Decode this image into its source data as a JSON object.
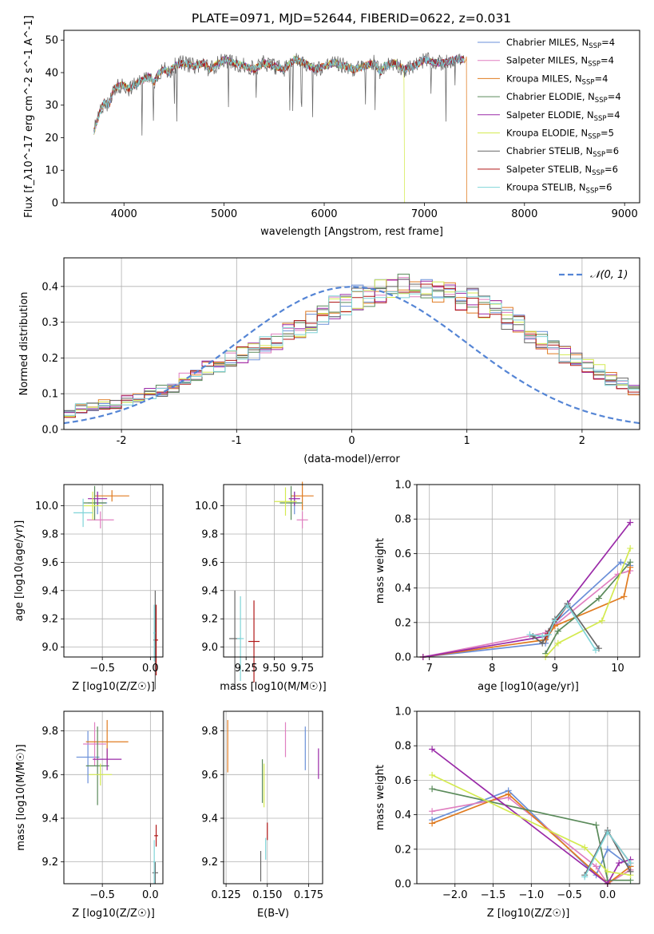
{
  "figure_title": "PLATE=0971, MJD=52644, FIBERID=0622, z=0.031",
  "colors": {
    "chabrier_miles": "#6a8fd8",
    "salpeter_miles": "#e07fc0",
    "kroupa_miles": "#e07b20",
    "chabrier_elodie": "#5a8a5a",
    "salpeter_elodie": "#9a2aa8",
    "kroupa_elodie": "#d4ea50",
    "chabrier_stelib": "#666666",
    "salpeter_stelib": "#b01818",
    "kroupa_stelib": "#7fd4d8",
    "normal_curve": "#5585d5"
  },
  "chart_data": [
    {
      "id": "spectrum",
      "type": "line",
      "title": "PLATE=0971, MJD=52644, FIBERID=0622, z=0.031",
      "xlabel": "wavelength [Angstrom, rest frame]",
      "ylabel": "Flux [f_λ10^-17 erg cm^-2 s^-1 A^-1]",
      "xlim": [
        3400,
        9150
      ],
      "ylim": [
        0,
        53
      ],
      "xticks": [
        4000,
        5000,
        6000,
        7000,
        8000,
        9000
      ],
      "yticks": [
        0,
        10,
        20,
        30,
        40,
        50
      ],
      "grid": false,
      "legend_position": "top-right",
      "spectrum_x": [
        3700,
        3750,
        3800,
        3850,
        3900,
        3950,
        4000,
        4050,
        4100,
        4150,
        4200,
        4250,
        4300,
        4350,
        4400,
        4450,
        4500,
        4600,
        4700,
        4800,
        4850,
        4900,
        5000,
        5100,
        5200,
        5300,
        5400,
        5500,
        5600,
        5700,
        5800,
        5900,
        6000,
        6100,
        6200,
        6300,
        6400,
        6500,
        6560,
        6600,
        6700,
        6800,
        6900,
        7000,
        7100,
        7200,
        7300,
        7400
      ],
      "spectrum_y": [
        22,
        27,
        31,
        30,
        35,
        36,
        36,
        35,
        36,
        37,
        38,
        39,
        37,
        40,
        41,
        40,
        42,
        43,
        42,
        43,
        41,
        42,
        44,
        43,
        42,
        41,
        43,
        42,
        41,
        44,
        43,
        41,
        42,
        43,
        42,
        41,
        42,
        43,
        40,
        42,
        43,
        41,
        42,
        44,
        43,
        43,
        44,
        44
      ],
      "series": [
        {
          "name": "Chabrier MILES, N_SSP=4",
          "label_main": "Chabrier MILES, N",
          "label_sub": "SSP",
          "label_tail": "=4",
          "color": "#6a8fd8"
        },
        {
          "name": "Salpeter MILES, N_SSP=4",
          "label_main": "Salpeter MILES, N",
          "label_sub": "SSP",
          "label_tail": "=4",
          "color": "#e07fc0"
        },
        {
          "name": "Kroupa MILES, N_SSP=4",
          "label_main": "Kroupa MILES, N",
          "label_sub": "SSP",
          "label_tail": "=4",
          "color": "#e07b20",
          "drop_at": 7420
        },
        {
          "name": "Chabrier ELODIE, N_SSP=4",
          "label_main": "Chabrier ELODIE, N",
          "label_sub": "SSP",
          "label_tail": "=4",
          "color": "#5a8a5a"
        },
        {
          "name": "Salpeter ELODIE, N_SSP=4",
          "label_main": "Salpeter ELODIE, N",
          "label_sub": "SSP",
          "label_tail": "=4",
          "color": "#9a2aa8"
        },
        {
          "name": "Kroupa ELODIE, N_SSP=5",
          "label_main": "Kroupa ELODIE, N",
          "label_sub": "SSP",
          "label_tail": "=5",
          "color": "#d4ea50",
          "drop_at": 6800
        },
        {
          "name": "Chabrier STELIB, N_SSP=6",
          "label_main": "Chabrier STELIB, N",
          "label_sub": "SSP",
          "label_tail": "=6",
          "color": "#666666"
        },
        {
          "name": "Salpeter STELIB, N_SSP=6",
          "label_main": "Salpeter STELIB, N",
          "label_sub": "SSP",
          "label_tail": "=6",
          "color": "#b01818"
        },
        {
          "name": "Kroupa STELIB, N_SSP=6",
          "label_main": "Kroupa STELIB, N",
          "label_sub": "SSP",
          "label_tail": "=6",
          "color": "#7fd4d8"
        }
      ]
    },
    {
      "id": "residuals",
      "type": "histogram",
      "xlabel": "(data-model)/error",
      "ylabel": "Normed distribution",
      "xlim": [
        -2.5,
        2.5
      ],
      "ylim": [
        0,
        0.48
      ],
      "xticks": [
        -2,
        -1,
        0,
        1,
        2
      ],
      "yticks": [
        0.0,
        0.1,
        0.2,
        0.3,
        0.4
      ],
      "grid": true,
      "legend_position": "top-right",
      "legend": "𝒩(0, 1)",
      "bin_width": 0.1,
      "bins_start": -2.5,
      "base_values": [
        0.04,
        0.06,
        0.06,
        0.07,
        0.07,
        0.08,
        0.09,
        0.1,
        0.11,
        0.12,
        0.14,
        0.15,
        0.17,
        0.18,
        0.2,
        0.21,
        0.22,
        0.24,
        0.25,
        0.27,
        0.28,
        0.3,
        0.32,
        0.34,
        0.35,
        0.37,
        0.38,
        0.39,
        0.4,
        0.4,
        0.4,
        0.4,
        0.39,
        0.38,
        0.37,
        0.36,
        0.34,
        0.33,
        0.31,
        0.29,
        0.27,
        0.25,
        0.23,
        0.21,
        0.2,
        0.18,
        0.16,
        0.14,
        0.13,
        0.11,
        0.1,
        0.09,
        0.08,
        0.07,
        0.06,
        0.06,
        0.05,
        0.04,
        0.04,
        0.03
      ],
      "normal_curve": {
        "mean": 0,
        "sigma": 1
      }
    },
    {
      "id": "age-vs-Z",
      "type": "errorbar",
      "xlabel": "Z [log10(Z/Z☉)]",
      "ylabel": "age  [log10(age/yr)]",
      "xlim": [
        -0.9,
        0.13
      ],
      "ylim": [
        8.93,
        10.15
      ],
      "xticks": [
        -0.5,
        0.0
      ],
      "xticklabels": [
        "−0.5",
        "0.0"
      ],
      "yticks": [
        9.0,
        9.2,
        9.4,
        9.6,
        9.8,
        10.0
      ],
      "grid": true,
      "points": [
        {
          "x": -0.55,
          "y": 10.02,
          "xerr": 0.1,
          "yerr": 0.08,
          "color": "#6a8fd8"
        },
        {
          "x": -0.52,
          "y": 9.9,
          "xerr": 0.14,
          "yerr": 0.06,
          "color": "#e07fc0"
        },
        {
          "x": -0.4,
          "y": 10.07,
          "xerr": 0.18,
          "yerr": 0.04,
          "color": "#e07b20"
        },
        {
          "x": -0.58,
          "y": 10.02,
          "xerr": 0.12,
          "yerr": 0.12,
          "color": "#5a8a5a"
        },
        {
          "x": -0.55,
          "y": 10.05,
          "xerr": 0.1,
          "yerr": 0.05,
          "color": "#9a2aa8"
        },
        {
          "x": -0.6,
          "y": 10.0,
          "xerr": 0.1,
          "yerr": 0.1,
          "color": "#d4ea50"
        },
        {
          "x": 0.05,
          "y": 9.05,
          "xerr": 0.02,
          "yerr": 0.35,
          "color": "#666666"
        },
        {
          "x": 0.06,
          "y": 9.05,
          "xerr": 0.02,
          "yerr": 0.25,
          "color": "#b01818"
        },
        {
          "x": -0.7,
          "y": 9.95,
          "xerr": 0.1,
          "yerr": 0.1,
          "color": "#7fd4d8"
        },
        {
          "x": 0.04,
          "y": 9.1,
          "xerr": 0.01,
          "yerr": 0.2,
          "color": "#7fd4d8"
        }
      ]
    },
    {
      "id": "age-vs-mass",
      "type": "errorbar",
      "xlabel": "mass [log10(M/M☉)]",
      "ylabel": "",
      "xlim": [
        9.05,
        9.93
      ],
      "ylim": [
        8.93,
        10.15
      ],
      "xticks": [
        9.25,
        9.5,
        9.75
      ],
      "xticklabels": [
        "9.25",
        "9.50",
        "9.75"
      ],
      "yticks": [
        9.0,
        9.2,
        9.4,
        9.6,
        9.8,
        10.0
      ],
      "grid": true,
      "points": [
        {
          "x": 9.68,
          "y": 10.02,
          "xerr": 0.05,
          "yerr": 0.08,
          "color": "#6a8fd8"
        },
        {
          "x": 9.75,
          "y": 9.9,
          "xerr": 0.05,
          "yerr": 0.06,
          "color": "#e07fc0"
        },
        {
          "x": 9.75,
          "y": 10.07,
          "xerr": 0.1,
          "yerr": 0.1,
          "color": "#e07b20"
        },
        {
          "x": 9.65,
          "y": 10.02,
          "xerr": 0.1,
          "yerr": 0.12,
          "color": "#5a8a5a"
        },
        {
          "x": 9.68,
          "y": 10.05,
          "xerr": 0.05,
          "yerr": 0.05,
          "color": "#9a2aa8"
        },
        {
          "x": 9.6,
          "y": 10.03,
          "xerr": 0.1,
          "yerr": 0.1,
          "color": "#d4ea50"
        },
        {
          "x": 9.15,
          "y": 9.06,
          "xerr": 0.05,
          "yerr": 0.34,
          "color": "#666666"
        },
        {
          "x": 9.32,
          "y": 9.04,
          "xerr": 0.05,
          "yerr": 0.29,
          "color": "#b01818"
        },
        {
          "x": 9.2,
          "y": 9.06,
          "xerr": 0.03,
          "yerr": 0.3,
          "color": "#7fd4d8"
        }
      ]
    },
    {
      "id": "weight-vs-age",
      "type": "line",
      "xlabel": "age  [log10(age/yr)]",
      "ylabel": "mass weight",
      "xlim": [
        6.8,
        10.35
      ],
      "ylim": [
        0,
        1.0
      ],
      "xticks": [
        7,
        8,
        9,
        10
      ],
      "yticks": [
        0.0,
        0.2,
        0.4,
        0.6,
        0.8,
        1.0
      ],
      "grid": true,
      "series": [
        {
          "color": "#6a8fd8",
          "x": [
            6.9,
            8.85,
            9.0,
            10.05,
            10.2
          ],
          "y": [
            0.0,
            0.08,
            0.2,
            0.55,
            0.53
          ]
        },
        {
          "color": "#e07fc0",
          "x": [
            6.9,
            8.85,
            10.0,
            10.2
          ],
          "y": [
            0.0,
            0.14,
            0.48,
            0.5
          ]
        },
        {
          "color": "#e07b20",
          "x": [
            6.9,
            8.85,
            9.0,
            10.1,
            10.2
          ],
          "y": [
            0.0,
            0.1,
            0.18,
            0.35,
            0.52
          ]
        },
        {
          "color": "#5a8a5a",
          "x": [
            8.85,
            9.05,
            9.7,
            10.2
          ],
          "y": [
            0.02,
            0.15,
            0.34,
            0.55
          ]
        },
        {
          "color": "#9a2aa8",
          "x": [
            6.9,
            8.85,
            9.2,
            10.2
          ],
          "y": [
            0.0,
            0.12,
            0.31,
            0.78
          ]
        },
        {
          "color": "#d4ea50",
          "x": [
            8.85,
            9.05,
            9.75,
            10.2
          ],
          "y": [
            0.0,
            0.08,
            0.21,
            0.63
          ]
        },
        {
          "color": "#666666",
          "x": [
            8.65,
            8.8,
            8.9,
            9.0,
            9.2,
            9.7
          ],
          "y": [
            0.12,
            0.08,
            0.15,
            0.22,
            0.31,
            0.05
          ]
        },
        {
          "color": "#b01818",
          "x": [
            8.85,
            9.2
          ],
          "y": [
            0.12,
            0.3
          ]
        },
        {
          "color": "#7fd4d8",
          "x": [
            8.6,
            8.8,
            8.9,
            9.0,
            9.2,
            9.65
          ],
          "y": [
            0.13,
            0.12,
            0.13,
            0.21,
            0.3,
            0.04
          ]
        }
      ]
    },
    {
      "id": "mass-vs-Z",
      "type": "errorbar",
      "xlabel": "Z [log10(Z/Z☉)]",
      "ylabel": "mass [log10(M/M☉)]",
      "xlim": [
        -0.9,
        0.13
      ],
      "ylim": [
        9.1,
        9.89
      ],
      "xticks": [
        -0.5,
        0.0
      ],
      "xticklabels": [
        "−0.5",
        "0.0"
      ],
      "yticks": [
        9.2,
        9.4,
        9.6,
        9.8
      ],
      "grid": true,
      "points": [
        {
          "x": -0.65,
          "y": 9.68,
          "xerr": 0.12,
          "yerr": 0.12,
          "color": "#6a8fd8"
        },
        {
          "x": -0.58,
          "y": 9.74,
          "xerr": 0.12,
          "yerr": 0.1,
          "color": "#e07fc0"
        },
        {
          "x": -0.45,
          "y": 9.75,
          "xerr": 0.22,
          "yerr": 0.1,
          "color": "#e07b20"
        },
        {
          "x": -0.55,
          "y": 9.64,
          "xerr": 0.12,
          "yerr": 0.18,
          "color": "#5a8a5a"
        },
        {
          "x": -0.45,
          "y": 9.67,
          "xerr": 0.15,
          "yerr": 0.05,
          "color": "#9a2aa8"
        },
        {
          "x": -0.52,
          "y": 9.6,
          "xerr": 0.12,
          "yerr": 0.05,
          "color": "#d4ea50"
        },
        {
          "x": 0.05,
          "y": 9.15,
          "xerr": 0.03,
          "yerr": 0.05,
          "color": "#666666"
        },
        {
          "x": 0.06,
          "y": 9.32,
          "xerr": 0.02,
          "yerr": 0.05,
          "color": "#b01818"
        },
        {
          "x": 0.04,
          "y": 9.2,
          "xerr": 0.01,
          "yerr": 0.1,
          "color": "#7fd4d8"
        }
      ]
    },
    {
      "id": "mass-vs-EBV",
      "type": "errorbar",
      "xlabel": "E(B-V)",
      "ylabel": "",
      "xlim": [
        0.1235,
        0.1835
      ],
      "ylim": [
        9.1,
        9.89
      ],
      "xticks": [
        0.125,
        0.15,
        0.175
      ],
      "xticklabels": [
        "0.125",
        "0.150",
        "0.175"
      ],
      "yticks": [
        9.2,
        9.4,
        9.6,
        9.8
      ],
      "grid": true,
      "points": [
        {
          "x": 0.173,
          "y": 9.72,
          "xerr": 0,
          "yerr": 0.1,
          "color": "#6a8fd8"
        },
        {
          "x": 0.161,
          "y": 9.76,
          "xerr": 0,
          "yerr": 0.08,
          "color": "#e07fc0"
        },
        {
          "x": 0.126,
          "y": 9.73,
          "xerr": 0,
          "yerr": 0.12,
          "color": "#e07b20"
        },
        {
          "x": 0.147,
          "y": 9.57,
          "xerr": 0,
          "yerr": 0.1,
          "color": "#5a8a5a"
        },
        {
          "x": 0.181,
          "y": 9.65,
          "xerr": 0,
          "yerr": 0.07,
          "color": "#9a2aa8"
        },
        {
          "x": 0.148,
          "y": 9.55,
          "xerr": 0,
          "yerr": 0.1,
          "color": "#d4ea50"
        },
        {
          "x": 0.146,
          "y": 9.18,
          "xerr": 0,
          "yerr": 0.07,
          "color": "#666666"
        },
        {
          "x": 0.15,
          "y": 9.34,
          "xerr": 0,
          "yerr": 0.04,
          "color": "#b01818"
        },
        {
          "x": 0.149,
          "y": 9.26,
          "xerr": 0,
          "yerr": 0.05,
          "color": "#7fd4d8"
        }
      ]
    },
    {
      "id": "weight-vs-Z",
      "type": "line",
      "xlabel": "Z [log10(Z/Z☉)]",
      "ylabel": "mass weight",
      "xlim": [
        -2.5,
        0.42
      ],
      "ylim": [
        0,
        1.0
      ],
      "xticks": [
        -2.0,
        -1.5,
        -1.0,
        -0.5,
        0.0
      ],
      "xticklabels": [
        "−2.0",
        "−1.5",
        "−1.0",
        "−0.5",
        "0.0"
      ],
      "yticks": [
        0.0,
        0.2,
        0.4,
        0.6,
        0.8,
        1.0
      ],
      "grid": true,
      "series": [
        {
          "color": "#6a8fd8",
          "x": [
            -2.3,
            -1.3,
            -0.15,
            0.0,
            0.3
          ],
          "y": [
            0.37,
            0.54,
            0.05,
            0.2,
            0.1
          ]
        },
        {
          "color": "#e07fc0",
          "x": [
            -2.3,
            -1.3,
            -0.15,
            0.0,
            0.3
          ],
          "y": [
            0.42,
            0.5,
            0.1,
            0.0,
            0.08
          ]
        },
        {
          "color": "#e07b20",
          "x": [
            -2.3,
            -1.3,
            0.0,
            0.3
          ],
          "y": [
            0.35,
            0.52,
            0.0,
            0.1
          ]
        },
        {
          "color": "#5a8a5a",
          "x": [
            -2.3,
            -0.15,
            0.0,
            0.3
          ],
          "y": [
            0.55,
            0.34,
            0.02,
            0.02
          ]
        },
        {
          "color": "#9a2aa8",
          "x": [
            -2.3,
            0.0,
            0.15,
            0.3
          ],
          "y": [
            0.78,
            0.0,
            0.12,
            0.14
          ]
        },
        {
          "color": "#d4ea50",
          "x": [
            -2.3,
            -0.3,
            0.0,
            0.3
          ],
          "y": [
            0.63,
            0.21,
            0.07,
            0.05
          ]
        },
        {
          "color": "#666666",
          "x": [
            -0.3,
            0.0,
            0.3
          ],
          "y": [
            0.05,
            0.31,
            0.07
          ]
        },
        {
          "color": "#b01818",
          "x": [
            0.0,
            0.3
          ],
          "y": [
            0.3,
            0.12
          ]
        },
        {
          "color": "#7fd4d8",
          "x": [
            -0.3,
            0.0,
            0.3
          ],
          "y": [
            0.04,
            0.3,
            0.12
          ]
        }
      ]
    }
  ]
}
